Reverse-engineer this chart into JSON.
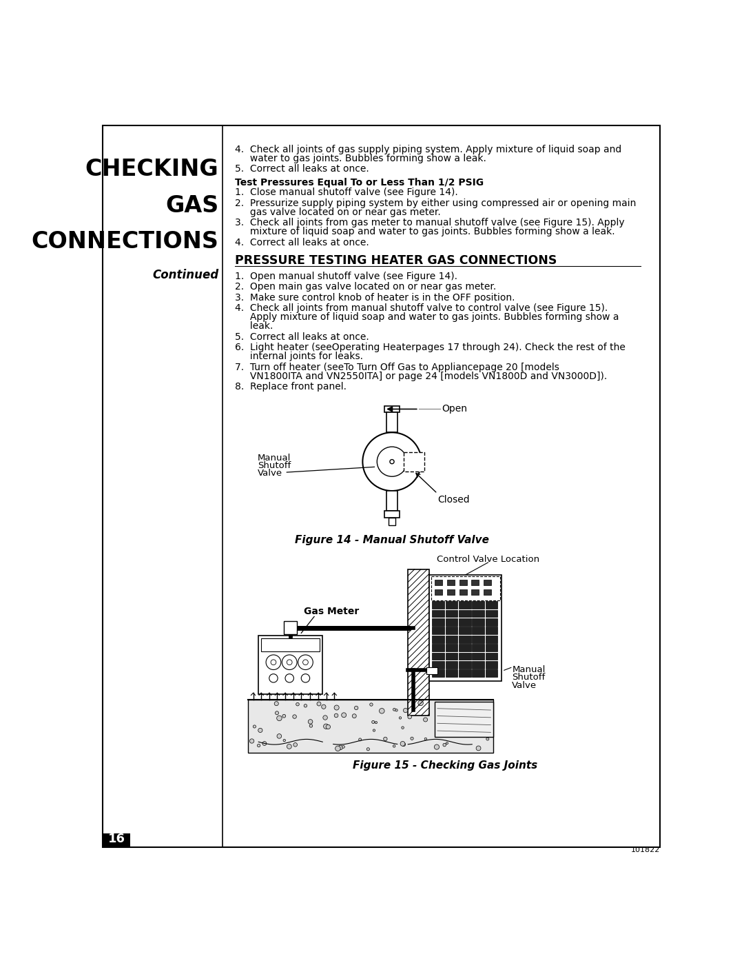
{
  "page_bg": "#ffffff",
  "border_color": "#000000",
  "left_panel_title_lines": [
    "CHECKING",
    "GAS",
    "CONNECTIONS"
  ],
  "left_panel_subtitle": "Continued",
  "page_number": "16",
  "doc_number": "101822",
  "section1_items": [
    "4.  Check all joints of gas supply piping system. Apply mixture of liquid soap and\n     water to gas joints. Bubbles forming show a leak.",
    "5.  Correct all leaks at once."
  ],
  "section2_title": "Test Pressures Equal To or Less Than 1/2 PSIG",
  "section2_items": [
    "1.  Close manual shutoff valve (see Figure 14).",
    "2.  Pressurize supply piping system by either using compressed air or opening main\n     gas valve located on or near gas meter.",
    "3.  Check all joints from gas meter to manual shutoff valve (see Figure 15). Apply\n     mixture of liquid soap and water to gas joints. Bubbles forming show a leak.",
    "4.  Correct all leaks at once."
  ],
  "section3_title": "PRESSURE TESTING HEATER GAS CONNECTIONS",
  "section3_items": [
    "1.  Open manual shutoff valve (see Figure 14).",
    "2.  Open main gas valve located on or near gas meter.",
    "3.  Make sure control knob of heater is in the OFF position.",
    "4.  Check all joints from manual shutoff valve to control valve (see Figure 15).\n     Apply mixture of liquid soap and water to gas joints. Bubbles forming show a\n     leak.",
    "5.  Correct all leaks at once.",
    "6.  Light heater (seeOperating Heaterpages 17 through 24). Check the rest of the\n     internal joints for leaks.",
    "7.  Turn off heater (seeTo Turn Off Gas to Appliancepage 20 [models\n     VN1800ITA and VN2550ITA] or page 24 [models VN1800D and VN3000D]).",
    "8.  Replace front panel."
  ],
  "fig14_caption": "Figure 14 - Manual Shutoff Valve",
  "fig15_caption": "Figure 15 - Checking Gas Joints"
}
